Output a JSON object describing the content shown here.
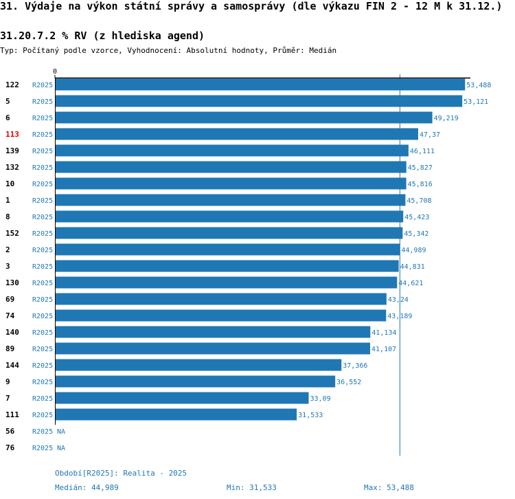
{
  "title": "31. Výdaje na výkon státní správy a samosprávy (dle výkazu FIN 2 - 12 M k 31.12.)",
  "subtitle": "31.20.7.2 % RV (z hlediska agend)",
  "type_line": "Typ: Počítaný podle vzorce, Vyhodnocení: Absolutní hodnoty, Průměr: Medián",
  "colors": {
    "bar": "#1f77b4",
    "highlight": "#e00000",
    "label": "#000000",
    "value": "#1f77b4"
  },
  "chart_data": {
    "type": "bar",
    "orientation": "horizontal",
    "axis_zero_label": "0",
    "xlim": [
      0,
      54
    ],
    "median_line": 44.989,
    "highlight_category": "113",
    "categories": [
      "122",
      "5",
      "6",
      "113",
      "139",
      "132",
      "10",
      "1",
      "8",
      "152",
      "2",
      "3",
      "130",
      "69",
      "74",
      "140",
      "89",
      "144",
      "9",
      "7",
      "111",
      "56",
      "76"
    ],
    "periods": [
      "R2025",
      "R2025",
      "R2025",
      "R2025",
      "R2025",
      "R2025",
      "R2025",
      "R2025",
      "R2025",
      "R2025",
      "R2025",
      "R2025",
      "R2025",
      "R2025",
      "R2025",
      "R2025",
      "R2025",
      "R2025",
      "R2025",
      "R2025",
      "R2025",
      "R2025",
      "R2025"
    ],
    "values": [
      53.488,
      53.121,
      49.219,
      47.37,
      46.111,
      45.827,
      45.816,
      45.708,
      45.423,
      45.342,
      44.989,
      44.831,
      44.621,
      43.24,
      43.189,
      41.134,
      41.107,
      37.366,
      36.552,
      33.09,
      31.533,
      null,
      null
    ],
    "value_labels": [
      "53,488",
      "53,121",
      "49,219",
      "47,37",
      "46,111",
      "45,827",
      "45,816",
      "45,708",
      "45,423",
      "45,342",
      "44,989",
      "44,831",
      "44,621",
      "43,24",
      "43,189",
      "41,134",
      "41,107",
      "37,366",
      "36,552",
      "33,09",
      "31,533",
      "NA",
      "NA"
    ]
  },
  "footer": {
    "period": "Období[R2025]: Realita - 2025",
    "median": "Medián: 44,989",
    "min": "Min: 31,533",
    "max": "Max: 53,488"
  }
}
